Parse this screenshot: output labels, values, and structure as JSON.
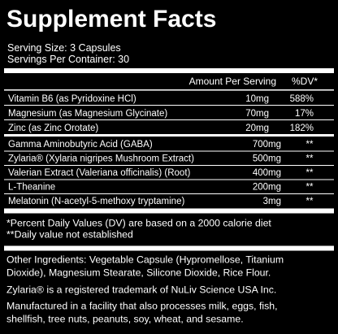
{
  "title": "Supplement Facts",
  "serving_size": "Serving Size: 3 Capsules",
  "servings_per_container": "Servings Per Container: 30",
  "header": {
    "amount": "Amount Per Serving",
    "dv": "%DV*"
  },
  "vitamins": [
    {
      "name": "Vitamin B6 (as Pyridoxine HCl)",
      "amount": "10mg",
      "dv": "588%"
    },
    {
      "name": "Magnesium (as Magnesium Glycinate)",
      "amount": "70mg",
      "dv": "17%"
    },
    {
      "name": "Zinc (as Zinc Orotate)",
      "amount": "20mg",
      "dv": "182%"
    }
  ],
  "others": [
    {
      "name": "Gamma Aminobutyric Acid (GABA)",
      "amount": "700mg",
      "dv": "**"
    },
    {
      "name": "Zylaria® (Xylaria nigripes Mushroom Extract)",
      "amount": "500mg",
      "dv": "**"
    },
    {
      "name": "Valerian Extract (Valeriana officinalis) (Root)",
      "amount": "400mg",
      "dv": "**"
    },
    {
      "name": "L-Theanine",
      "amount": "200mg",
      "dv": "**"
    },
    {
      "name": "Melatonin (N-acetyl-5-methoxy tryptamine)",
      "amount": "3mg",
      "dv": "**"
    }
  ],
  "footnotes": [
    "*Percent Daily Values (DV) are based on a 2000 calorie diet",
    "**Daily value not established"
  ],
  "other_ingredients": [
    "Other Ingredients: Vegetable Capsule (Hypromellose, Titanium",
    "Dioxide), Magnesium Stearate, Silicone Dioxide, Rice Flour."
  ],
  "trademark": "Zylaria® is a registered trademark of NuLiv Science USA Inc.",
  "allergen": [
    "Manufactured in a facility that also processes milk, eggs, fish,",
    "shellfish, tree nuts, peanuts, soy, wheat, and sesame."
  ]
}
